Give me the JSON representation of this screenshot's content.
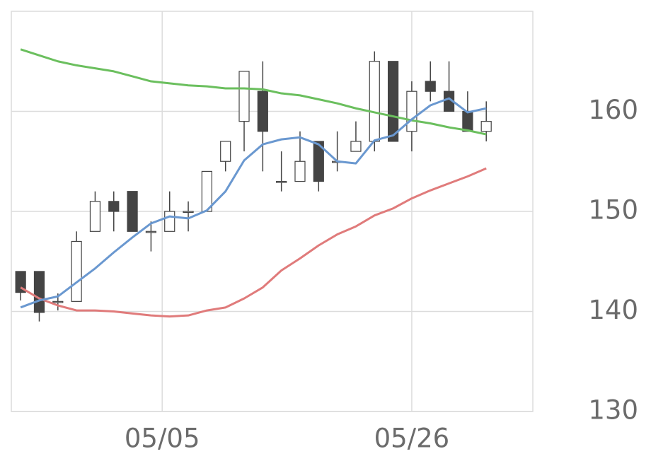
{
  "chart_data": {
    "type": "candlestick",
    "x": [
      0,
      1,
      2,
      3,
      4,
      5,
      6,
      7,
      8,
      9,
      10,
      11,
      12,
      13,
      14,
      15,
      16,
      17,
      18,
      19,
      20,
      21,
      22,
      23,
      24,
      25
    ],
    "open": [
      144,
      144,
      141,
      141,
      148,
      151,
      152,
      148,
      148,
      150,
      150,
      155,
      159,
      162,
      153,
      153,
      157,
      155,
      156,
      157,
      165,
      158,
      163,
      162,
      160,
      158
    ],
    "high": [
      144,
      144,
      141.8,
      148,
      152,
      152,
      152,
      149,
      152,
      151,
      154,
      157,
      164,
      165,
      156,
      158,
      157,
      158,
      159,
      166,
      165,
      163,
      165,
      165,
      162,
      161
    ],
    "low": [
      141.1,
      139,
      140.1,
      141,
      148,
      148,
      148,
      146,
      148,
      148,
      150,
      154,
      156,
      154,
      152,
      153,
      152,
      154,
      156,
      156,
      157,
      156,
      161,
      160,
      158,
      157
    ],
    "close": [
      141.9,
      139.9,
      141,
      147,
      151,
      150,
      148,
      148,
      150,
      150,
      154,
      157,
      164,
      158,
      153,
      155,
      153,
      155,
      157,
      165,
      157,
      162,
      162,
      160,
      158,
      159
    ],
    "up_color": "#ffffff",
    "down_color": "#444444",
    "lines": [
      {
        "color": "#6bbf5e",
        "values": [
          166.2,
          165.6,
          165.0,
          164.6,
          164.3,
          164.0,
          163.5,
          163.0,
          162.8,
          162.6,
          162.5,
          162.3,
          162.3,
          162.2,
          161.8,
          161.6,
          161.2,
          160.8,
          160.3,
          159.9,
          159.5,
          159.1,
          158.8,
          158.4,
          158.1,
          157.7
        ]
      },
      {
        "color": "#e07b7b",
        "values": [
          142.4,
          141.3,
          140.6,
          140.1,
          140.1,
          140.0,
          139.8,
          139.6,
          139.5,
          139.6,
          140.1,
          140.4,
          141.3,
          142.4,
          144.1,
          145.3,
          146.6,
          147.7,
          148.5,
          149.6,
          150.3,
          151.3,
          152.1,
          152.8,
          153.5,
          154.3
        ]
      },
      {
        "color": "#6a98d0",
        "values": [
          140.4,
          141.1,
          141.5,
          142.9,
          144.3,
          145.9,
          147.4,
          148.8,
          149.5,
          149.3,
          150.1,
          152.0,
          155.1,
          156.7,
          157.2,
          157.4,
          156.7,
          155.0,
          154.8,
          157.1,
          157.6,
          159.2,
          160.6,
          161.3,
          159.9,
          160.3
        ]
      }
    ],
    "xlim": [
      -0.5,
      27.5
    ],
    "xticks": [
      {
        "value": 7.6,
        "label": "05/05"
      },
      {
        "value": 21,
        "label": "05/26"
      }
    ],
    "ylim": [
      130,
      170
    ],
    "yticks": [
      130,
      140,
      150,
      160
    ],
    "grid": true
  }
}
